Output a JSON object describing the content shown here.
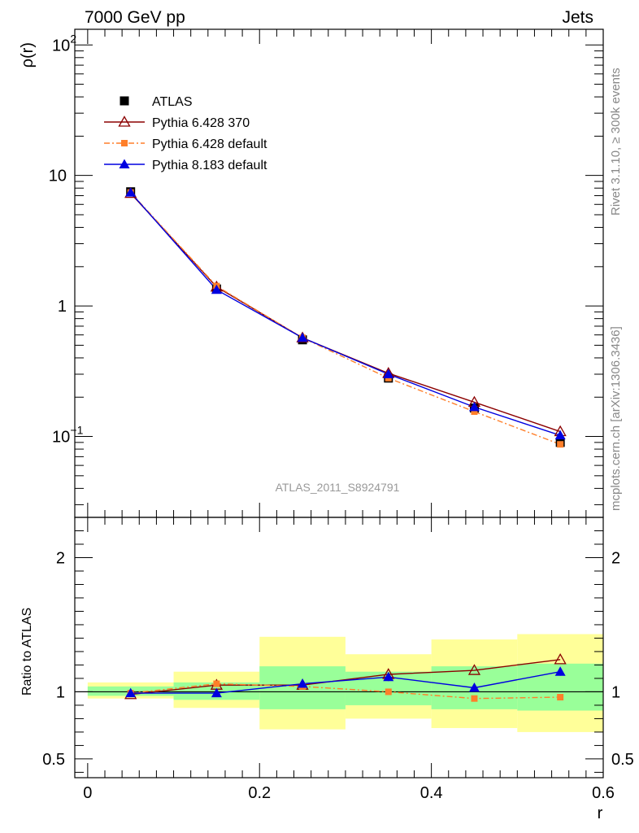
{
  "header": {
    "left": "7000 GeV pp",
    "right": "Jets"
  },
  "side_text": {
    "rivet": "Rivet 3.1.10, ≥ 300k events",
    "source": "mcplots.cern.ch [arXiv:1306.3436]"
  },
  "colors": {
    "atlas": "#000000",
    "p6_370": "#8b0000",
    "p6_default": "#ff7f2a",
    "p8_default": "#0000e0",
    "band_outer": "#ffff99",
    "band_inner": "#99ff99"
  },
  "chart_data": [
    {
      "type": "line",
      "panel": "main",
      "ylabel": "ρ(r)",
      "xlim": [
        -0.015,
        0.6
      ],
      "ylim_log10": [
        -1.62,
        2.12
      ],
      "yscale": "log",
      "yticks": [
        {
          "value_log10": -1,
          "label": "10",
          "exp": "−1"
        },
        {
          "value_log10": 0,
          "label": "1",
          "exp": ""
        },
        {
          "value_log10": 1,
          "label": "10",
          "exp": ""
        },
        {
          "value_log10": 2,
          "label": "10",
          "exp": "2"
        }
      ],
      "analysis_label": "ATLAS_2011_S8924791",
      "x": [
        0.05,
        0.15,
        0.25,
        0.35,
        0.45,
        0.55
      ],
      "series": [
        {
          "name": "ATLAS",
          "marker": "square",
          "values": [
            7.5,
            1.35,
            0.55,
            0.28,
            0.165,
            0.09
          ]
        },
        {
          "name": "Pythia 6.428 370",
          "marker": "triangle-open",
          "values": [
            7.3,
            1.4,
            0.57,
            0.305,
            0.183,
            0.109
          ]
        },
        {
          "name": "Pythia 6.428 default",
          "marker": "small-square",
          "values": [
            7.4,
            1.42,
            0.57,
            0.28,
            0.155,
            0.087
          ]
        },
        {
          "name": "Pythia 8.183 default",
          "marker": "triangle",
          "values": [
            7.4,
            1.33,
            0.57,
            0.3,
            0.168,
            0.102
          ]
        }
      ]
    },
    {
      "type": "line",
      "panel": "ratio",
      "ylabel": "Ratio to ATLAS",
      "xlabel": "r",
      "xlim": [
        -0.015,
        0.6
      ],
      "ylim": [
        0.36,
        2.3
      ],
      "xticks": [
        0,
        0.2,
        0.4,
        0.6
      ],
      "xtick_labels": [
        "0",
        "0.2",
        "0.4",
        "0.6"
      ],
      "yticks": [
        0.5,
        1,
        2
      ],
      "ytick_labels": [
        "0.5",
        "1",
        "2"
      ],
      "bands": [
        {
          "xlo": 0.0,
          "xhi": 0.1,
          "outer": [
            0.95,
            1.07
          ],
          "inner": [
            0.97,
            1.04
          ]
        },
        {
          "xlo": 0.1,
          "xhi": 0.2,
          "outer": [
            0.88,
            1.15
          ],
          "inner": [
            0.94,
            1.07
          ]
        },
        {
          "xlo": 0.2,
          "xhi": 0.3,
          "outer": [
            0.72,
            1.41
          ],
          "inner": [
            0.87,
            1.19
          ]
        },
        {
          "xlo": 0.3,
          "xhi": 0.4,
          "outer": [
            0.8,
            1.28
          ],
          "inner": [
            0.9,
            1.15
          ]
        },
        {
          "xlo": 0.4,
          "xhi": 0.5,
          "outer": [
            0.73,
            1.39
          ],
          "inner": [
            0.87,
            1.19
          ]
        },
        {
          "xlo": 0.5,
          "xhi": 0.6,
          "outer": [
            0.7,
            1.43
          ],
          "inner": [
            0.86,
            1.21
          ]
        }
      ],
      "x": [
        0.05,
        0.15,
        0.25,
        0.35,
        0.45,
        0.55
      ],
      "series": [
        {
          "name": "Pythia 6.428 370",
          "marker": "triangle-open",
          "values": [
            0.98,
            1.05,
            1.05,
            1.13,
            1.16,
            1.24
          ]
        },
        {
          "name": "Pythia 6.428 default",
          "marker": "small-square",
          "values": [
            0.99,
            1.06,
            1.04,
            1.0,
            0.95,
            0.96
          ]
        },
        {
          "name": "Pythia 8.183 default",
          "marker": "triangle",
          "values": [
            0.99,
            0.99,
            1.06,
            1.11,
            1.03,
            1.15
          ]
        }
      ],
      "error": {
        "series": "Pythia 8.183 default",
        "halfwidth": [
          0.01,
          0.01,
          0.03,
          0.03,
          0.03,
          0.03
        ]
      }
    }
  ]
}
